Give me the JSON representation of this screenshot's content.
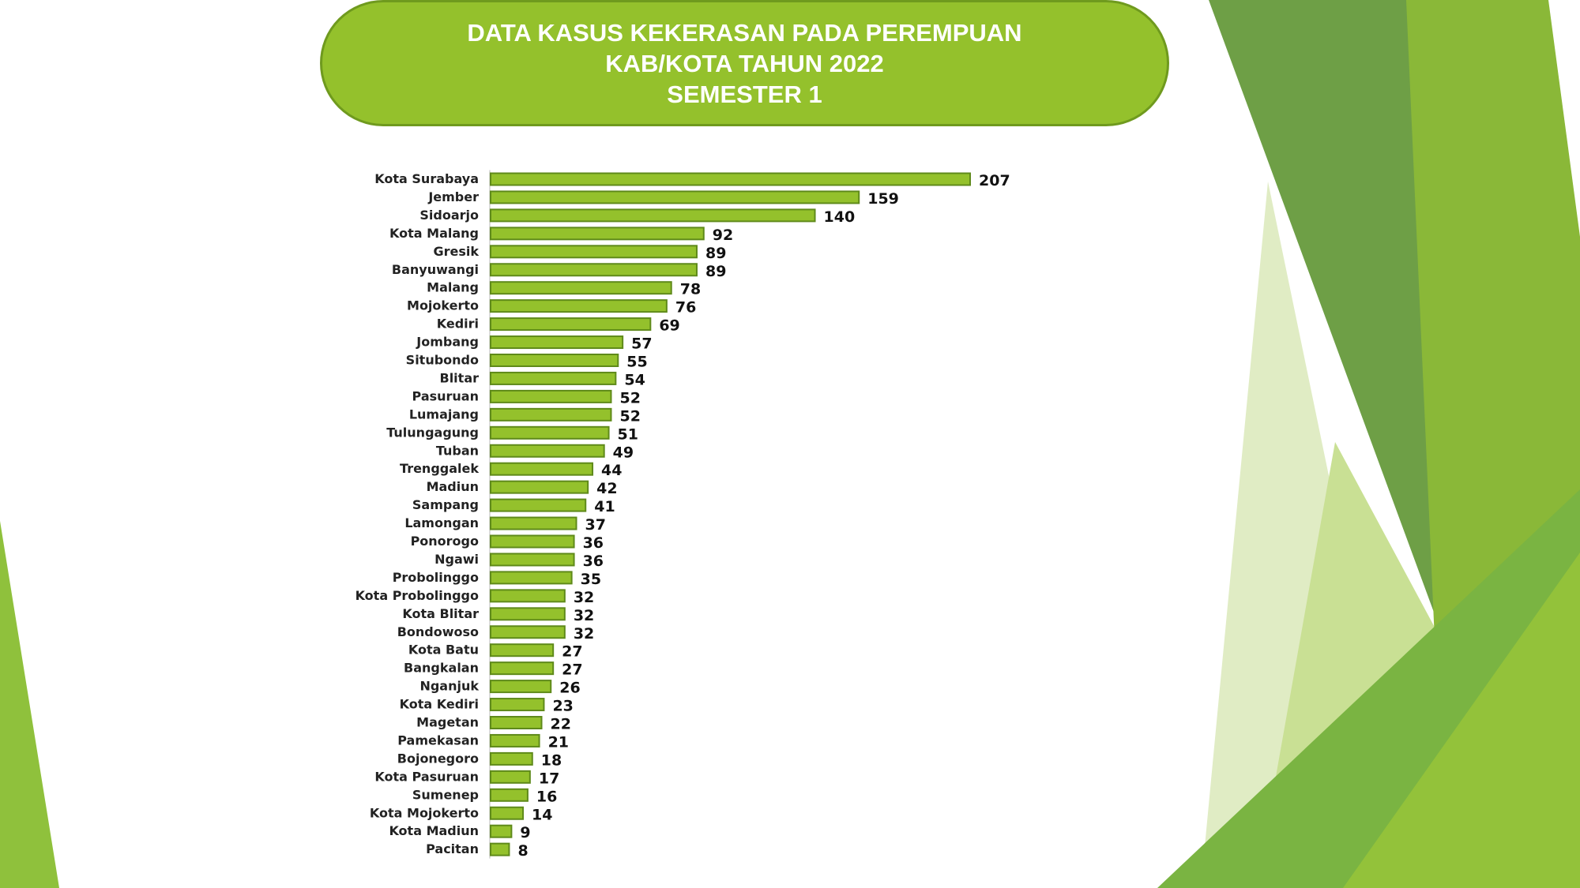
{
  "title": {
    "line1": "DATA KASUS KEKERASAN PADA PEREMPUAN",
    "line2": "KAB/KOTA TAHUN 2022",
    "line3": "SEMESTER 1"
  },
  "colors": {
    "bar_fill": "#94c12c",
    "bar_border": "#5f8a1a",
    "title_fill": "#94c12c",
    "accent_dark": "#6a9b3f",
    "accent_light": "#dde9bf"
  },
  "chart_data": {
    "type": "bar",
    "orientation": "horizontal",
    "title": "DATA KASUS KEKERASAN PADA PEREMPUAN KAB/KOTA TAHUN 2022 SEMESTER 1",
    "categories": [
      "Kota Surabaya",
      "Jember",
      "Sidoarjo",
      "Kota Malang",
      "Gresik",
      "Banyuwangi",
      "Malang",
      "Mojokerto",
      "Kediri",
      "Jombang",
      "Situbondo",
      "Blitar",
      "Pasuruan",
      "Lumajang",
      "Tulungagung",
      "Tuban",
      "Trenggalek",
      "Madiun",
      "Sampang",
      "Lamongan",
      "Ponorogo",
      "Ngawi",
      "Probolinggo",
      "Kota Probolinggo",
      "Kota Blitar",
      "Bondowoso",
      "Kota Batu",
      "Bangkalan",
      "Nganjuk",
      "Kota Kediri",
      "Magetan",
      "Pamekasan",
      "Bojonegoro",
      "Kota Pasuruan",
      "Sumenep",
      "Kota Mojokerto",
      "Kota Madiun",
      "Pacitan"
    ],
    "values": [
      207,
      159,
      140,
      92,
      89,
      89,
      78,
      76,
      69,
      57,
      55,
      54,
      52,
      52,
      51,
      49,
      44,
      42,
      41,
      37,
      36,
      36,
      35,
      32,
      32,
      32,
      27,
      27,
      26,
      23,
      22,
      21,
      18,
      17,
      16,
      14,
      9,
      8
    ],
    "xlim": [
      0,
      207
    ],
    "data_labels": true,
    "grid": false,
    "legend": false
  }
}
